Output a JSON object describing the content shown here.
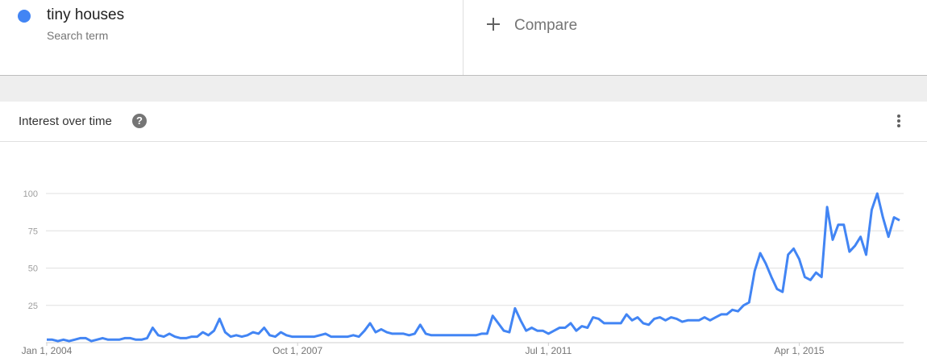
{
  "term": {
    "name": "tiny houses",
    "type_label": "Search term",
    "color": "#4285f4"
  },
  "compare": {
    "label": "Compare",
    "icon": "plus-icon"
  },
  "card": {
    "title": "Interest over time",
    "help_icon": "help-icon",
    "help_symbol": "?",
    "menu_icon": "more-vert-icon"
  },
  "chart_data": {
    "type": "line",
    "title": "",
    "xlabel": "",
    "ylabel": "",
    "ylim": [
      0,
      100
    ],
    "yticks": [
      "25",
      "50",
      "75",
      "100"
    ],
    "xticks": [
      "Jan 1, 2004",
      "Oct 1, 2007",
      "Jul 1, 2011",
      "Apr 1, 2015"
    ],
    "x_start": "2004-01",
    "x_step": "month",
    "grid": true,
    "series": [
      {
        "color": "#4285f4",
        "values": [
          2,
          2,
          1,
          2,
          1,
          2,
          3,
          3,
          1,
          2,
          3,
          2,
          2,
          2,
          3,
          3,
          2,
          2,
          3,
          10,
          5,
          4,
          6,
          4,
          3,
          3,
          4,
          4,
          7,
          5,
          8,
          16,
          7,
          4,
          5,
          4,
          5,
          7,
          6,
          10,
          5,
          4,
          7,
          5,
          4,
          4,
          4,
          4,
          4,
          5,
          6,
          4,
          4,
          4,
          4,
          5,
          4,
          8,
          13,
          7,
          9,
          7,
          6,
          6,
          6,
          5,
          6,
          12,
          6,
          5,
          5,
          5,
          5,
          5,
          5,
          5,
          5,
          5,
          6,
          6,
          18,
          13,
          8,
          7,
          23,
          15,
          8,
          10,
          8,
          8,
          6,
          8,
          10,
          10,
          13,
          8,
          11,
          10,
          17,
          16,
          13,
          13,
          13,
          13,
          19,
          15,
          17,
          13,
          12,
          16,
          17,
          15,
          17,
          16,
          14,
          15,
          15,
          15,
          17,
          15,
          17,
          19,
          19,
          22,
          21,
          25,
          27,
          48,
          60,
          53,
          44,
          36,
          34,
          59,
          63,
          56,
          44,
          42,
          47,
          44,
          91,
          69,
          79,
          79,
          61,
          65,
          71,
          59,
          89,
          100,
          84,
          71,
          84,
          82
        ]
      }
    ]
  }
}
